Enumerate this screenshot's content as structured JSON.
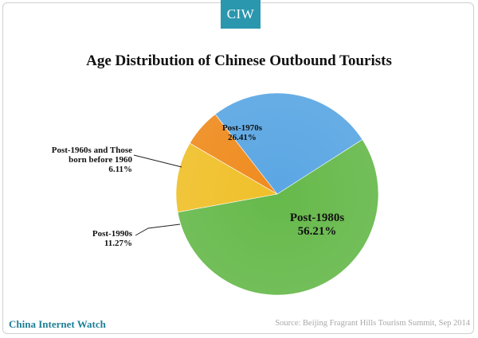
{
  "brand": {
    "logo_text": "CIW",
    "logo_color": "#2a97ae"
  },
  "footer": {
    "site_name": "China Internet Watch",
    "source": "Source: Beijing Fragrant Hills Tourism Summit, Sep 2014"
  },
  "chart_data": {
    "type": "pie",
    "title": "Age Distribution of Chinese Outbound Tourists",
    "slices": [
      {
        "label_lines": [
          "Post-1980s"
        ],
        "value": 56.21,
        "value_text": "56.21%",
        "color": "#66b94b"
      },
      {
        "label_lines": [
          "Post-1990s"
        ],
        "value": 11.27,
        "value_text": "11.27%",
        "color": "#f0c02a"
      },
      {
        "label_lines": [
          "Post-1960s and Those",
          "born before 1960"
        ],
        "value": 6.11,
        "value_text": "6.11%",
        "color": "#ef8b1e"
      },
      {
        "label_lines": [
          "Post-1970s"
        ],
        "value": 26.41,
        "value_text": "26.41%",
        "color": "#5aa6e3"
      }
    ]
  }
}
